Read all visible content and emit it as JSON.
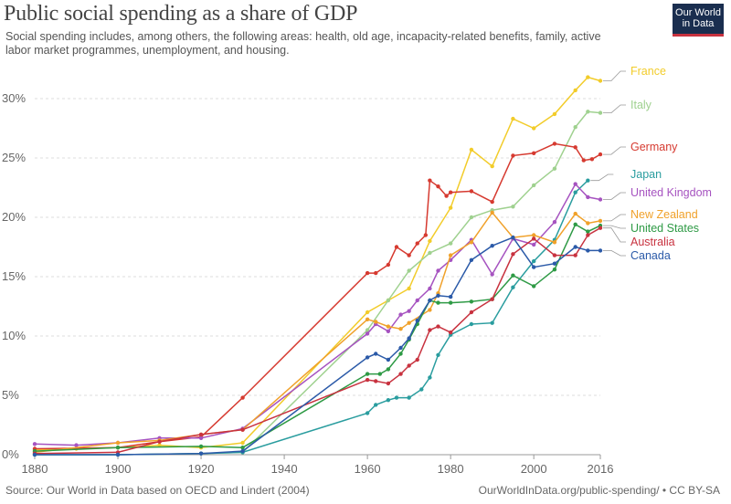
{
  "title": "Public social spending as a share of GDP",
  "subtitle": "Social spending includes, among others, the following areas: health, old age, incapacity-related benefits, family, active labor market programmes, unemployment, and housing.",
  "logo": {
    "line1": "Our World",
    "line2": "in Data"
  },
  "source": "Source: Our World in Data based on OECD and Lindert (2004)",
  "url": "OurWorldInData.org/public-spending/ • CC BY-SA",
  "chart_data": {
    "type": "line",
    "xlim": [
      1880,
      2016
    ],
    "ylim": [
      0,
      32
    ],
    "x_ticks": [
      1880,
      1900,
      1920,
      1940,
      1960,
      1980,
      2000,
      2016
    ],
    "y_ticks": [
      0,
      5,
      10,
      15,
      20,
      25,
      30
    ],
    "y_tick_labels": [
      "0%",
      "5%",
      "10%",
      "15%",
      "20%",
      "25%",
      "30%"
    ],
    "grid": "horizontal",
    "series": [
      {
        "name": "France",
        "color": "#f2cc2a",
        "points": [
          [
            1880,
            0.4
          ],
          [
            1890,
            0.5
          ],
          [
            1900,
            0.6
          ],
          [
            1910,
            0.8
          ],
          [
            1920,
            0.6
          ],
          [
            1930,
            1.0
          ],
          [
            1960,
            12.0
          ],
          [
            1965,
            13.0
          ],
          [
            1970,
            14.0
          ],
          [
            1975,
            18.0
          ],
          [
            1980,
            20.8
          ],
          [
            1985,
            25.7
          ],
          [
            1990,
            24.3
          ],
          [
            1995,
            28.3
          ],
          [
            2000,
            27.5
          ],
          [
            2005,
            28.7
          ],
          [
            2010,
            30.7
          ],
          [
            2013,
            31.8
          ],
          [
            2016,
            31.5
          ]
        ]
      },
      {
        "name": "Italy",
        "color": "#9fd18f",
        "points": [
          [
            1880,
            0.0
          ],
          [
            1900,
            0.0
          ],
          [
            1920,
            0.1
          ],
          [
            1930,
            0.2
          ],
          [
            1960,
            10.5
          ],
          [
            1965,
            13.0
          ],
          [
            1970,
            15.5
          ],
          [
            1975,
            17.0
          ],
          [
            1980,
            17.8
          ],
          [
            1985,
            20.0
          ],
          [
            1990,
            20.6
          ],
          [
            1995,
            20.9
          ],
          [
            2000,
            22.7
          ],
          [
            2005,
            24.1
          ],
          [
            2010,
            27.6
          ],
          [
            2013,
            28.9
          ],
          [
            2016,
            28.8
          ]
        ]
      },
      {
        "name": "Germany",
        "color": "#d63a30",
        "points": [
          [
            1880,
            0.5
          ],
          [
            1900,
            0.6
          ],
          [
            1910,
            1.1
          ],
          [
            1920,
            1.5
          ],
          [
            1930,
            4.8
          ],
          [
            1960,
            15.3
          ],
          [
            1962,
            15.3
          ],
          [
            1965,
            16.0
          ],
          [
            1967,
            17.5
          ],
          [
            1970,
            16.8
          ],
          [
            1972,
            17.8
          ],
          [
            1974,
            18.5
          ],
          [
            1975,
            23.1
          ],
          [
            1977,
            22.6
          ],
          [
            1979,
            21.8
          ],
          [
            1980,
            22.1
          ],
          [
            1985,
            22.2
          ],
          [
            1990,
            21.3
          ],
          [
            1995,
            25.2
          ],
          [
            2000,
            25.4
          ],
          [
            2005,
            26.2
          ],
          [
            2010,
            25.9
          ],
          [
            2012,
            24.8
          ],
          [
            2014,
            24.9
          ],
          [
            2016,
            25.3
          ]
        ]
      },
      {
        "name": "Japan",
        "color": "#2a9d9f",
        "points": [
          [
            1880,
            0.0
          ],
          [
            1900,
            0.0
          ],
          [
            1920,
            0.1
          ],
          [
            1930,
            0.2
          ],
          [
            1960,
            3.5
          ],
          [
            1962,
            4.2
          ],
          [
            1965,
            4.6
          ],
          [
            1967,
            4.8
          ],
          [
            1970,
            4.8
          ],
          [
            1973,
            5.5
          ],
          [
            1975,
            6.5
          ],
          [
            1977,
            8.4
          ],
          [
            1980,
            10.1
          ],
          [
            1985,
            11.0
          ],
          [
            1990,
            11.1
          ],
          [
            1995,
            14.1
          ],
          [
            2000,
            16.3
          ],
          [
            2005,
            18.1
          ],
          [
            2010,
            22.1
          ],
          [
            2013,
            23.1
          ]
        ]
      },
      {
        "name": "United Kingdom",
        "color": "#a653c0",
        "points": [
          [
            1880,
            0.9
          ],
          [
            1890,
            0.8
          ],
          [
            1900,
            1.0
          ],
          [
            1910,
            1.4
          ],
          [
            1920,
            1.4
          ],
          [
            1930,
            2.2
          ],
          [
            1960,
            10.2
          ],
          [
            1962,
            11.0
          ],
          [
            1965,
            10.4
          ],
          [
            1968,
            11.8
          ],
          [
            1970,
            12.1
          ],
          [
            1972,
            13.0
          ],
          [
            1975,
            14.0
          ],
          [
            1977,
            15.5
          ],
          [
            1980,
            16.4
          ],
          [
            1985,
            18.1
          ],
          [
            1990,
            15.2
          ],
          [
            1995,
            18.2
          ],
          [
            2000,
            17.7
          ],
          [
            2005,
            19.6
          ],
          [
            2010,
            22.8
          ],
          [
            2013,
            21.7
          ],
          [
            2016,
            21.5
          ]
        ]
      },
      {
        "name": "New Zealand",
        "color": "#f0a12a",
        "points": [
          [
            1880,
            0.2
          ],
          [
            1900,
            1.0
          ],
          [
            1910,
            1.2
          ],
          [
            1920,
            1.7
          ],
          [
            1930,
            2.1
          ],
          [
            1960,
            11.4
          ],
          [
            1962,
            11.2
          ],
          [
            1965,
            10.8
          ],
          [
            1968,
            10.6
          ],
          [
            1970,
            11.1
          ],
          [
            1975,
            12.2
          ],
          [
            1977,
            13.6
          ],
          [
            1980,
            16.8
          ],
          [
            1985,
            17.9
          ],
          [
            1990,
            20.4
          ],
          [
            1995,
            18.3
          ],
          [
            2000,
            18.5
          ],
          [
            2005,
            17.9
          ],
          [
            2010,
            20.3
          ],
          [
            2013,
            19.5
          ],
          [
            2016,
            19.7
          ]
        ]
      },
      {
        "name": "United States",
        "color": "#2e9a45",
        "points": [
          [
            1880,
            0.3
          ],
          [
            1900,
            0.6
          ],
          [
            1920,
            0.7
          ],
          [
            1930,
            0.6
          ],
          [
            1960,
            6.8
          ],
          [
            1963,
            6.8
          ],
          [
            1965,
            7.2
          ],
          [
            1968,
            8.5
          ],
          [
            1970,
            9.7
          ],
          [
            1972,
            11.0
          ],
          [
            1975,
            13.0
          ],
          [
            1977,
            12.8
          ],
          [
            1980,
            12.8
          ],
          [
            1985,
            12.9
          ],
          [
            1990,
            13.1
          ],
          [
            1995,
            15.1
          ],
          [
            2000,
            14.2
          ],
          [
            2005,
            15.6
          ],
          [
            2010,
            19.4
          ],
          [
            2013,
            18.8
          ],
          [
            2016,
            19.3
          ]
        ]
      },
      {
        "name": "Australia",
        "color": "#c8323f",
        "points": [
          [
            1880,
            0.1
          ],
          [
            1900,
            0.2
          ],
          [
            1910,
            1.1
          ],
          [
            1920,
            1.7
          ],
          [
            1930,
            2.1
          ],
          [
            1960,
            6.3
          ],
          [
            1962,
            6.2
          ],
          [
            1965,
            6.0
          ],
          [
            1968,
            6.8
          ],
          [
            1970,
            7.5
          ],
          [
            1972,
            8.0
          ],
          [
            1975,
            10.5
          ],
          [
            1977,
            10.8
          ],
          [
            1980,
            10.3
          ],
          [
            1985,
            12.0
          ],
          [
            1990,
            13.1
          ],
          [
            1995,
            16.9
          ],
          [
            2000,
            18.2
          ],
          [
            2005,
            16.8
          ],
          [
            2010,
            16.8
          ],
          [
            2013,
            18.5
          ],
          [
            2016,
            19.1
          ]
        ]
      },
      {
        "name": "Canada",
        "color": "#2b5aa8",
        "points": [
          [
            1880,
            0.0
          ],
          [
            1900,
            0.0
          ],
          [
            1920,
            0.1
          ],
          [
            1930,
            0.3
          ],
          [
            1960,
            8.2
          ],
          [
            1962,
            8.5
          ],
          [
            1965,
            8.0
          ],
          [
            1968,
            9.0
          ],
          [
            1970,
            9.8
          ],
          [
            1972,
            11.3
          ],
          [
            1975,
            13.0
          ],
          [
            1977,
            13.4
          ],
          [
            1980,
            13.3
          ],
          [
            1985,
            16.4
          ],
          [
            1990,
            17.6
          ],
          [
            1995,
            18.3
          ],
          [
            2000,
            15.8
          ],
          [
            2005,
            16.1
          ],
          [
            2010,
            17.5
          ],
          [
            2013,
            17.2
          ],
          [
            2016,
            17.2
          ]
        ]
      }
    ]
  }
}
